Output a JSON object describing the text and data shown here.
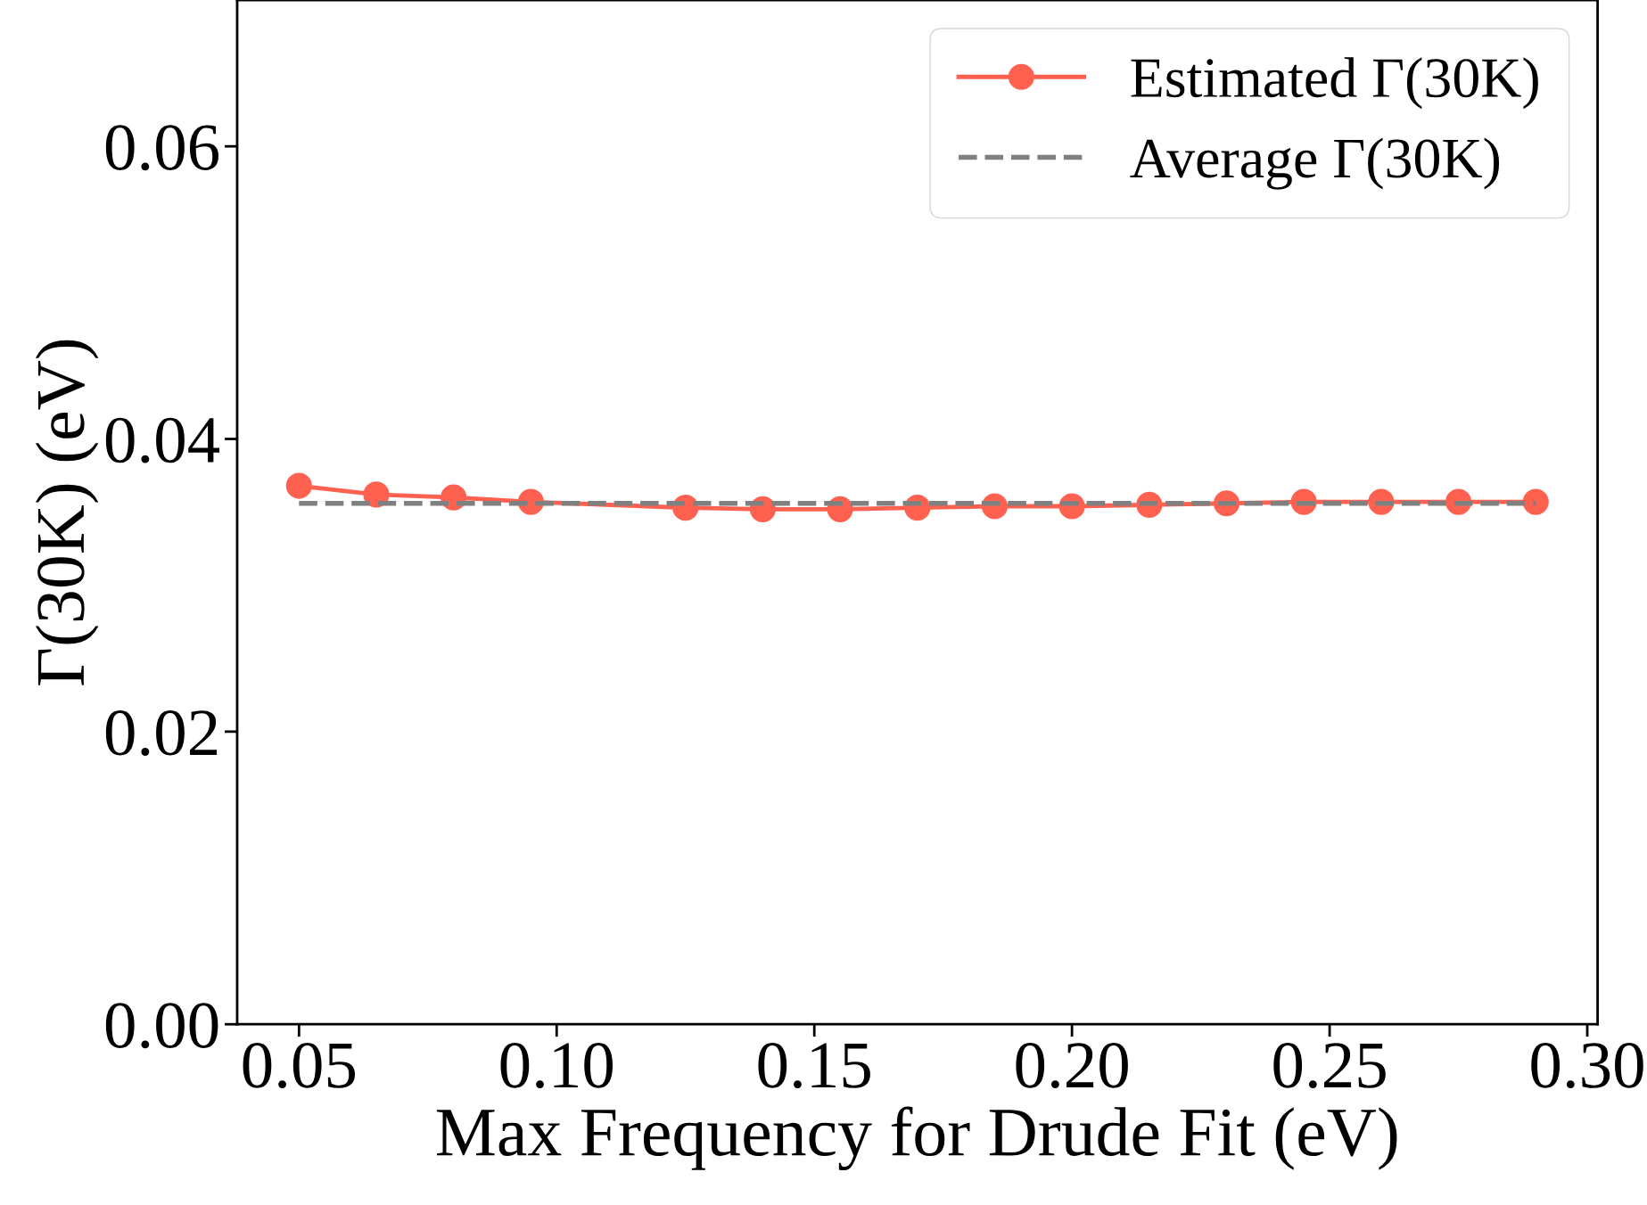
{
  "chart_data": {
    "type": "line",
    "xlabel": "Max Frequency for Drude Fit (eV)",
    "ylabel": "Γ(30K) (eV)",
    "xlim": [
      0.038,
      0.302
    ],
    "xticks": [
      {
        "value": 0.05,
        "label": "0.05"
      },
      {
        "value": 0.1,
        "label": "0.10"
      },
      {
        "value": 0.15,
        "label": "0.15"
      },
      {
        "value": 0.2,
        "label": "0.20"
      },
      {
        "value": 0.25,
        "label": "0.25"
      },
      {
        "value": 0.3,
        "label": "0.30"
      }
    ],
    "ylim": [
      0,
      0.07
    ],
    "yticks": [
      {
        "value": 0,
        "label": "0.00"
      },
      {
        "value": 0.02,
        "label": "0.02"
      },
      {
        "value": 0.04,
        "label": "0.04"
      },
      {
        "value": 0.06,
        "label": "0.06"
      }
    ],
    "grid": false,
    "legend": "top right",
    "series": [
      {
        "name": "Estimated Γ(30K)",
        "color": "#ff6150",
        "marker": "circle",
        "line_style": "solid",
        "x": [
          0.05,
          0.065,
          0.08,
          0.095,
          0.125,
          0.14,
          0.155,
          0.17,
          0.185,
          0.2,
          0.215,
          0.23,
          0.245,
          0.26,
          0.275,
          0.29
        ],
        "values": [
          0.0368,
          0.0362,
          0.036,
          0.0357,
          0.0353,
          0.0352,
          0.0352,
          0.0353,
          0.0354,
          0.0354,
          0.0355,
          0.0356,
          0.0357,
          0.0357,
          0.0357,
          0.0357
        ]
      },
      {
        "name": "Average Γ(30K)",
        "color": "#808080",
        "marker": "none",
        "line_style": "dashed",
        "x": [
          0.05,
          0.29
        ],
        "values": [
          0.0356,
          0.0356
        ]
      }
    ]
  }
}
